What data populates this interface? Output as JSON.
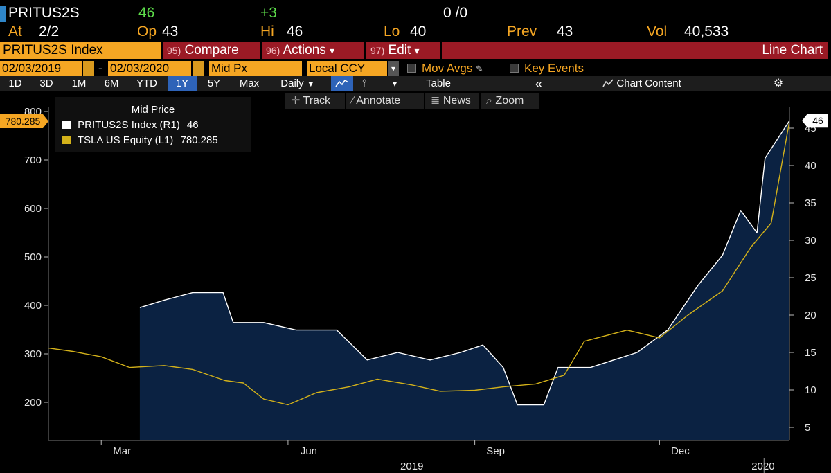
{
  "quote": {
    "ticker": "PRITUS2S",
    "last": "46",
    "change": "+3",
    "bid_ask": "0 /0",
    "at_label": "At",
    "at_value": "2/2",
    "op_label": "Op",
    "op_value": "43",
    "hi_label": "Hi",
    "hi_value": "46",
    "lo_label": "Lo",
    "lo_value": "40",
    "prev_label": "Prev",
    "prev_value": "43",
    "vol_label": "Vol",
    "vol_value": "40,533"
  },
  "toolbar": {
    "security": "PRITUS2S Index",
    "compare_num": "95)",
    "compare": "Compare",
    "actions_num": "96)",
    "actions": "Actions",
    "edit_num": "97)",
    "edit": "Edit",
    "dropdown_glyph": "▾",
    "chart_type": "Line Chart"
  },
  "dates": {
    "start": "02/03/2019",
    "dash": "-",
    "end": "02/03/2020",
    "field": "Mid Px",
    "currency": "Local CCY",
    "mov_avgs": "Mov Avgs",
    "key_events": "Key Events"
  },
  "ranges": {
    "items": [
      "1D",
      "3D",
      "1M",
      "6M",
      "YTD",
      "1Y",
      "5Y",
      "Max"
    ],
    "selected": "1Y",
    "frequency": "Daily",
    "frequency_glyph": "▼",
    "line_glyph": "📈",
    "bar_glyph": "⫯",
    "more_glyph": "▾",
    "table": "Table",
    "collapse_glyph": "«",
    "chart_content": "Chart Content",
    "settings_glyph": "⚙"
  },
  "tools": {
    "track": "Track",
    "annotate": "Annotate",
    "news": "News",
    "zoom": "Zoom"
  },
  "colors": {
    "white_series": "#ffffff",
    "yellow_series": "#d4b21a",
    "area_fill": "#0b2242",
    "bloomberg_orange": "#f5a623",
    "toolbar_red": "#9b1a25"
  },
  "chart_data": {
    "type": "line",
    "title": "Mid Price",
    "x_range": [
      "2019-02-03",
      "2020-02-03"
    ],
    "x_ticks": [
      {
        "label": "Mar",
        "date": "2019-03-01"
      },
      {
        "label": "Jun",
        "date": "2019-06-01"
      },
      {
        "label": "Sep",
        "date": "2019-09-01"
      },
      {
        "label": "Dec",
        "date": "2019-12-01"
      }
    ],
    "x_year_labels": [
      {
        "label": "2019",
        "date": "2019-08-01"
      },
      {
        "label": "2020",
        "date": "2020-01-21"
      }
    ],
    "left_axis": {
      "ticks": [
        200,
        300,
        400,
        500,
        600,
        700,
        800
      ],
      "range": [
        130,
        830
      ]
    },
    "right_axis": {
      "ticks": [
        5,
        10,
        15,
        20,
        25,
        30,
        35,
        40,
        45
      ],
      "range": [
        3,
        48
      ]
    },
    "series": [
      {
        "name": "TSLA US Equity",
        "legend": "TSLA US Equity  (L1)",
        "last_value": "780.285",
        "axis": "left",
        "points": [
          [
            "2019-02-03",
            312
          ],
          [
            "2019-02-15",
            305
          ],
          [
            "2019-03-01",
            294
          ],
          [
            "2019-03-15",
            272
          ],
          [
            "2019-04-01",
            276
          ],
          [
            "2019-04-15",
            268
          ],
          [
            "2019-05-01",
            245
          ],
          [
            "2019-05-10",
            240
          ],
          [
            "2019-05-20",
            207
          ],
          [
            "2019-06-01",
            195
          ],
          [
            "2019-06-15",
            220
          ],
          [
            "2019-07-01",
            232
          ],
          [
            "2019-07-15",
            248
          ],
          [
            "2019-08-01",
            236
          ],
          [
            "2019-08-15",
            223
          ],
          [
            "2019-09-01",
            225
          ],
          [
            "2019-09-15",
            232
          ],
          [
            "2019-10-01",
            238
          ],
          [
            "2019-10-15",
            256
          ],
          [
            "2019-10-25",
            326
          ],
          [
            "2019-11-15",
            349
          ],
          [
            "2019-12-01",
            333
          ],
          [
            "2019-12-15",
            380
          ],
          [
            "2020-01-01",
            430
          ],
          [
            "2020-01-15",
            520
          ],
          [
            "2020-01-25",
            570
          ],
          [
            "2020-02-03",
            780
          ]
        ]
      },
      {
        "name": "PRITUS2S Index",
        "legend": "PRITUS2S Index  (R1)",
        "last_value": "46",
        "axis": "right",
        "points": [
          [
            "2019-03-20",
            21
          ],
          [
            "2019-04-01",
            22
          ],
          [
            "2019-04-15",
            23
          ],
          [
            "2019-04-30",
            23
          ],
          [
            "2019-05-05",
            19
          ],
          [
            "2019-05-20",
            19
          ],
          [
            "2019-06-05",
            18
          ],
          [
            "2019-06-25",
            18
          ],
          [
            "2019-07-10",
            14
          ],
          [
            "2019-07-25",
            15
          ],
          [
            "2019-08-10",
            14
          ],
          [
            "2019-08-25",
            15
          ],
          [
            "2019-09-05",
            16
          ],
          [
            "2019-09-15",
            13
          ],
          [
            "2019-09-22",
            8
          ],
          [
            "2019-10-01",
            8
          ],
          [
            "2019-10-05",
            8
          ],
          [
            "2019-10-12",
            13
          ],
          [
            "2019-10-28",
            13
          ],
          [
            "2019-11-20",
            15
          ],
          [
            "2019-12-05",
            18
          ],
          [
            "2019-12-20",
            24
          ],
          [
            "2020-01-01",
            28
          ],
          [
            "2020-01-10",
            34
          ],
          [
            "2020-01-18",
            31
          ],
          [
            "2020-01-22",
            41
          ],
          [
            "2020-02-03",
            46
          ]
        ]
      }
    ]
  }
}
